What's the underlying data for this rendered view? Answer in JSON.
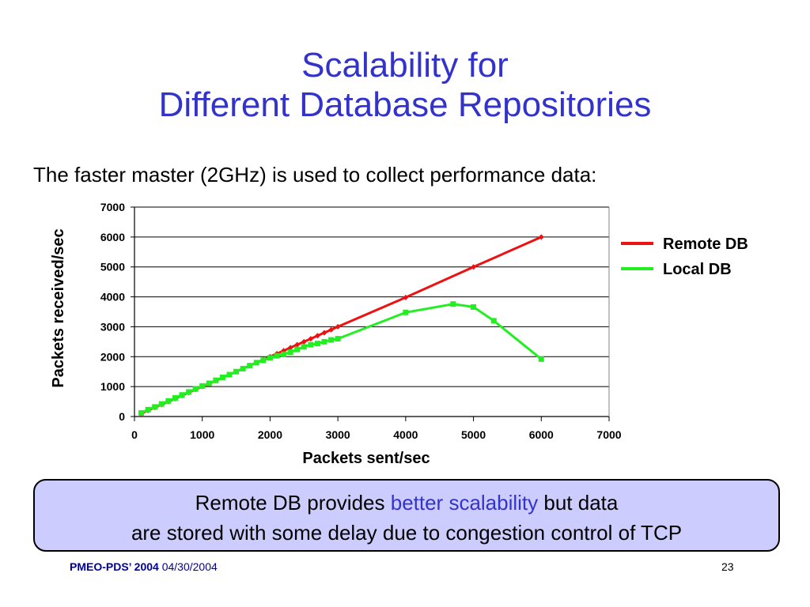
{
  "slide": {
    "title_line1": "Scalability for",
    "title_line2": "Different Database Repositories",
    "subtitle": "The faster master (2GHz) is used to collect performance data:"
  },
  "note": {
    "line1_before": "Remote DB provides ",
    "line1_accent": "better scalability",
    "line1_after": " but data",
    "line2": "are stored with some delay due to congestion control of TCP"
  },
  "footer": {
    "conference": "PMEO-PDS’ 2004",
    "date": "04/30/2004",
    "page_number": "23"
  },
  "colors": {
    "title": "#3333cc",
    "remote_db": "#ee1111",
    "local_db": "#22ee22",
    "note_background": "#ccccff"
  },
  "chart_data": {
    "type": "line",
    "xlabel": "Packets sent/sec",
    "ylabel": "Packets received/sec",
    "xlim": [
      0,
      7000
    ],
    "ylim": [
      0,
      7000
    ],
    "xticks": [
      "0",
      "1000",
      "2000",
      "3000",
      "4000",
      "5000",
      "6000",
      "7000"
    ],
    "yticks": [
      "0",
      "1000",
      "2000",
      "3000",
      "4000",
      "5000",
      "6000",
      "7000"
    ],
    "grid": "horizontal",
    "legend_position": "right",
    "series": [
      {
        "name": "Remote DB",
        "color": "#ee1111",
        "marker": "diamond",
        "x": [
          100,
          200,
          300,
          400,
          500,
          600,
          700,
          800,
          900,
          1000,
          1100,
          1200,
          1300,
          1400,
          1500,
          1600,
          1700,
          1800,
          1900,
          2000,
          2100,
          2200,
          2300,
          2400,
          2500,
          2600,
          2700,
          2800,
          2900,
          3000,
          4000,
          5000,
          6000
        ],
        "y": [
          100,
          200,
          300,
          400,
          500,
          600,
          700,
          800,
          900,
          1000,
          1100,
          1200,
          1300,
          1400,
          1500,
          1600,
          1700,
          1800,
          1900,
          2000,
          2100,
          2200,
          2300,
          2400,
          2500,
          2600,
          2700,
          2800,
          2900,
          3000,
          3980,
          5000,
          6000
        ]
      },
      {
        "name": "Local DB",
        "color": "#22ee22",
        "marker": "square",
        "x": [
          100,
          200,
          300,
          400,
          500,
          600,
          700,
          800,
          900,
          1000,
          1100,
          1200,
          1300,
          1400,
          1500,
          1600,
          1700,
          1800,
          1900,
          2000,
          2100,
          2200,
          2300,
          2400,
          2500,
          2600,
          2700,
          2800,
          2900,
          3000,
          4000,
          4700,
          5000,
          5300,
          6000
        ],
        "y": [
          120,
          230,
          320,
          420,
          520,
          620,
          720,
          820,
          920,
          1020,
          1110,
          1210,
          1310,
          1400,
          1500,
          1600,
          1700,
          1800,
          1880,
          1960,
          2030,
          2080,
          2150,
          2240,
          2330,
          2400,
          2440,
          2500,
          2560,
          2600,
          3480,
          3760,
          3660,
          3200,
          1920
        ]
      }
    ]
  }
}
